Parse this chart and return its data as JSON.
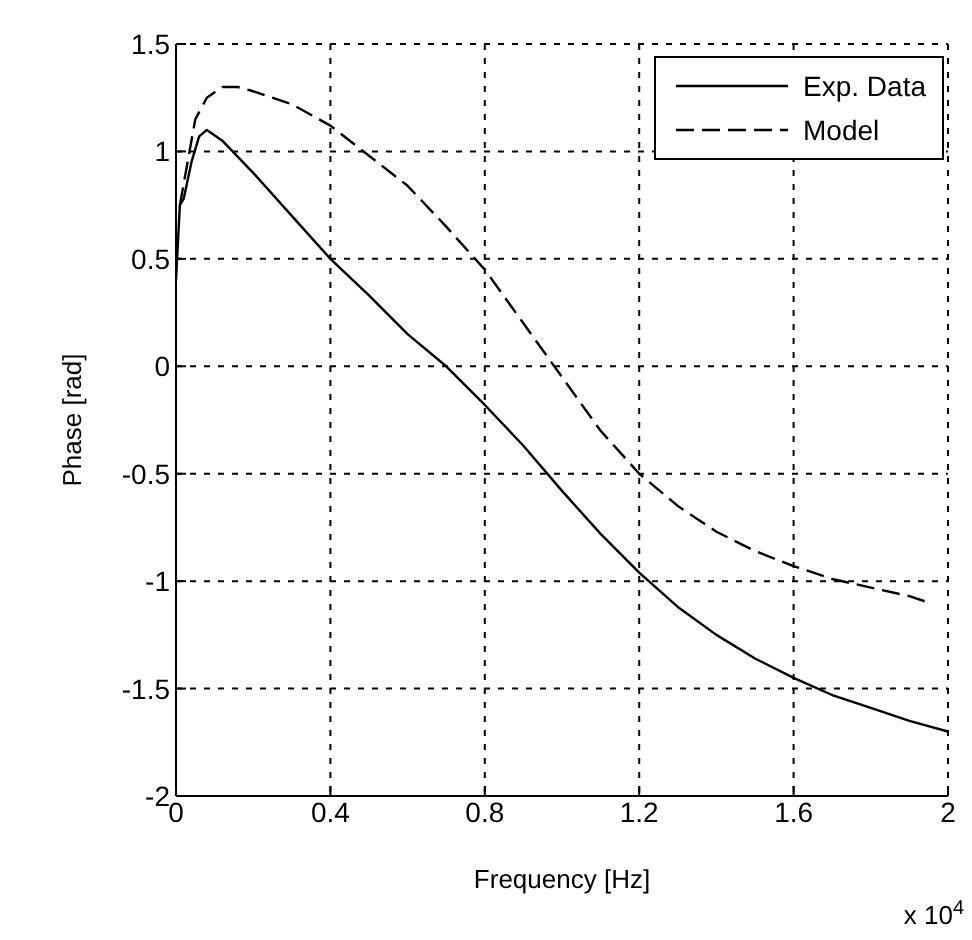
{
  "chart_data": {
    "type": "line",
    "xlabel": "Frequency [Hz]",
    "ylabel": "Phase [rad]",
    "annotations": [
      "x 10$^{4}$"
    ],
    "xlim": [
      0,
      2
    ],
    "xticks": [
      0,
      0.4,
      0.8,
      1.2,
      1.6,
      2
    ],
    "ylim": [
      -2,
      1.5
    ],
    "yticks": [
      -2,
      -1.5,
      -1,
      -0.5,
      0,
      0.5,
      1,
      1.5
    ],
    "grid": true,
    "legend": "top right",
    "series": [
      {
        "name": "Exp. Data",
        "color": "#000000",
        "line_style": "solid",
        "x": [
          0,
          0.01,
          0.02,
          0.04,
          0.06,
          0.08,
          0.12,
          0.2,
          0.3,
          0.4,
          0.5,
          0.6,
          0.7,
          0.8,
          0.9,
          1.0,
          1.1,
          1.2,
          1.3,
          1.4,
          1.5,
          1.6,
          1.7,
          1.8,
          1.9,
          2.0
        ],
        "values": [
          0.4,
          0.75,
          0.78,
          0.95,
          1.07,
          1.1,
          1.05,
          0.9,
          0.7,
          0.5,
          0.33,
          0.15,
          0,
          -0.18,
          -0.37,
          -0.58,
          -0.78,
          -0.96,
          -1.12,
          -1.25,
          -1.36,
          -1.45,
          -1.53,
          -1.59,
          -1.65,
          -1.7
        ]
      },
      {
        "name": "Model",
        "color": "#000000",
        "line_style": "dashed",
        "x": [
          0.01,
          0.03,
          0.05,
          0.08,
          0.12,
          0.16,
          0.2,
          0.3,
          0.4,
          0.5,
          0.6,
          0.7,
          0.8,
          0.9,
          1.0,
          1.1,
          1.2,
          1.3,
          1.4,
          1.5,
          1.6,
          1.7,
          1.8,
          1.9,
          1.95
        ],
        "values": [
          0.75,
          0.95,
          1.15,
          1.25,
          1.3,
          1.3,
          1.28,
          1.22,
          1.12,
          0.98,
          0.84,
          0.65,
          0.45,
          0.2,
          -0.05,
          -0.3,
          -0.5,
          -0.65,
          -0.77,
          -0.86,
          -0.93,
          -0.99,
          -1.03,
          -1.07,
          -1.1
        ]
      }
    ]
  }
}
